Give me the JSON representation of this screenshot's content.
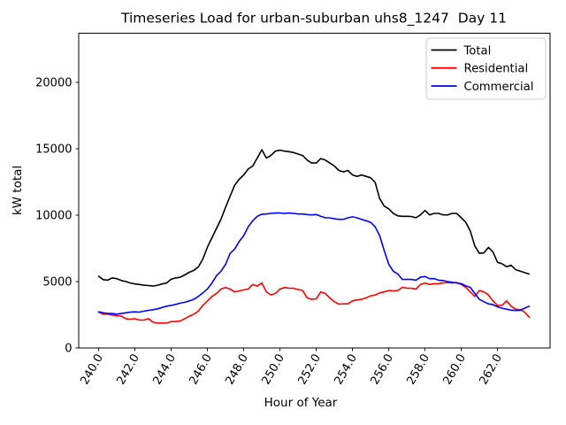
{
  "figure": {
    "background": "#ffffff",
    "title": "Timeseries Load for urban-suburban uhs8_1247  Day 11"
  },
  "legend": {
    "position": "upper-right",
    "entries": [
      {
        "label": "Total",
        "color": "#000000"
      },
      {
        "label": "Residential",
        "color": "#ff0000"
      },
      {
        "label": "Commercial",
        "color": "#0000ff"
      }
    ]
  },
  "chart_data": {
    "type": "line",
    "title": "Timeseries Load for urban-suburban uhs8_1247  Day 11",
    "xlabel": "Hour of Year",
    "ylabel": "kW total",
    "xlim": [
      238.9,
      264.9
    ],
    "ylim": [
      0,
      23700
    ],
    "grid": false,
    "x_ticks": [
      240.0,
      242.0,
      244.0,
      246.0,
      248.0,
      250.0,
      252.0,
      254.0,
      256.0,
      258.0,
      260.0,
      262.0
    ],
    "x_tick_labels": [
      "240.0",
      "242.0",
      "244.0",
      "246.0",
      "248.0",
      "250.0",
      "252.0",
      "254.0",
      "256.0",
      "258.0",
      "260.0",
      "262.0"
    ],
    "x_tick_rotation": 60,
    "y_ticks": [
      0,
      5000,
      10000,
      15000,
      20000
    ],
    "y_tick_labels": [
      "0",
      "5000",
      "10000",
      "15000",
      "20000"
    ],
    "x": [
      240.0,
      240.25,
      240.5,
      240.75,
      241.0,
      241.25,
      241.5,
      241.75,
      242.0,
      242.25,
      242.5,
      242.75,
      243.0,
      243.25,
      243.5,
      243.75,
      244.0,
      244.25,
      244.5,
      244.75,
      245.0,
      245.25,
      245.5,
      245.75,
      246.0,
      246.25,
      246.5,
      246.75,
      247.0,
      247.25,
      247.5,
      247.75,
      248.0,
      248.25,
      248.5,
      248.75,
      249.0,
      249.25,
      249.5,
      249.75,
      250.0,
      250.25,
      250.5,
      250.75,
      251.0,
      251.25,
      251.5,
      251.75,
      252.0,
      252.25,
      252.5,
      252.75,
      253.0,
      253.25,
      253.5,
      253.75,
      254.0,
      254.25,
      254.5,
      254.75,
      255.0,
      255.25,
      255.5,
      255.75,
      256.0,
      256.25,
      256.5,
      256.75,
      257.0,
      257.25,
      257.5,
      257.75,
      258.0,
      258.25,
      258.5,
      258.75,
      259.0,
      259.25,
      259.5,
      259.75,
      260.0,
      260.25,
      260.5,
      260.75,
      261.0,
      261.25,
      261.5,
      261.75,
      262.0,
      262.25,
      262.5,
      262.75,
      263.0,
      263.25,
      263.5,
      263.75
    ],
    "series": [
      {
        "name": "Total",
        "color": "#000000",
        "values": [
          5400,
          5150,
          5110,
          5270,
          5220,
          5080,
          5000,
          4890,
          4820,
          4780,
          4730,
          4700,
          4660,
          4730,
          4820,
          4890,
          5180,
          5270,
          5330,
          5500,
          5700,
          5850,
          6100,
          6700,
          7600,
          8300,
          9000,
          9700,
          10600,
          11430,
          12250,
          12700,
          13030,
          13480,
          13700,
          14300,
          14930,
          14300,
          14490,
          14820,
          14890,
          14820,
          14780,
          14710,
          14600,
          14490,
          14150,
          13930,
          13930,
          14260,
          14150,
          13930,
          13700,
          13370,
          13260,
          13370,
          13030,
          12920,
          13030,
          12920,
          12810,
          12470,
          11250,
          10690,
          10470,
          10130,
          9950,
          9910,
          9910,
          9900,
          9800,
          10020,
          10355,
          10020,
          10130,
          10130,
          10020,
          10020,
          10130,
          10130,
          9800,
          9460,
          8800,
          7680,
          7120,
          7160,
          7570,
          7230,
          6450,
          6340,
          6120,
          6230,
          5890,
          5780,
          5670,
          5560
        ]
      },
      {
        "name": "Residential",
        "color": "#ff0000",
        "values": [
          2700,
          2545,
          2545,
          2480,
          2430,
          2390,
          2210,
          2165,
          2210,
          2100,
          2100,
          2210,
          1940,
          1875,
          1875,
          1875,
          1985,
          1985,
          2030,
          2210,
          2390,
          2545,
          2770,
          3210,
          3550,
          3880,
          4110,
          4440,
          4550,
          4440,
          4220,
          4290,
          4370,
          4440,
          4780,
          4660,
          4890,
          4220,
          4000,
          4110,
          4440,
          4550,
          4510,
          4490,
          4400,
          4330,
          3770,
          3660,
          3700,
          4220,
          4110,
          3770,
          3480,
          3300,
          3320,
          3320,
          3550,
          3620,
          3660,
          3770,
          3920,
          3990,
          4150,
          4220,
          4330,
          4290,
          4330,
          4560,
          4510,
          4490,
          4440,
          4780,
          4890,
          4780,
          4840,
          4840,
          4890,
          4930,
          4890,
          4930,
          4780,
          4560,
          4220,
          3880,
          4330,
          4220,
          3990,
          3550,
          3210,
          3210,
          3550,
          3150,
          2920,
          2880,
          2700,
          2320
        ]
      },
      {
        "name": "Commercial",
        "color": "#0000ff",
        "values": [
          2720,
          2650,
          2610,
          2590,
          2545,
          2590,
          2650,
          2700,
          2720,
          2700,
          2770,
          2835,
          2880,
          2950,
          3050,
          3150,
          3210,
          3280,
          3370,
          3440,
          3550,
          3660,
          3880,
          4150,
          4450,
          4890,
          5445,
          5780,
          6300,
          7120,
          7450,
          8010,
          8460,
          9130,
          9580,
          9910,
          10070,
          10090,
          10130,
          10160,
          10160,
          10130,
          10160,
          10130,
          10090,
          10090,
          10050,
          10020,
          10050,
          9910,
          9800,
          9800,
          9730,
          9690,
          9690,
          9800,
          9870,
          9800,
          9690,
          9580,
          9460,
          9130,
          8460,
          7340,
          6300,
          5780,
          5570,
          5160,
          5160,
          5160,
          5110,
          5330,
          5380,
          5220,
          5220,
          5110,
          5070,
          5000,
          4950,
          4890,
          4840,
          4670,
          4560,
          4110,
          3660,
          3480,
          3320,
          3260,
          3100,
          2990,
          2920,
          2850,
          2830,
          2840,
          2990,
          3150
        ]
      }
    ]
  }
}
